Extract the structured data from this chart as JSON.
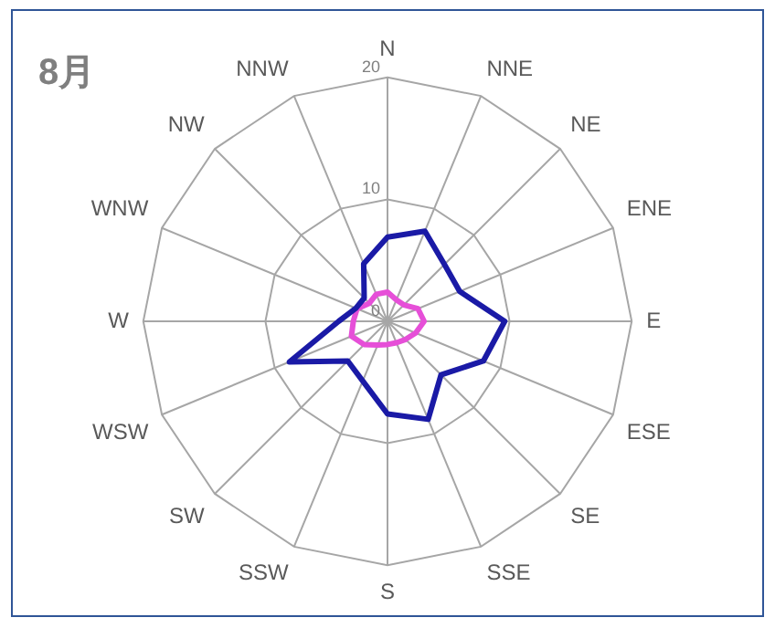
{
  "chart_data": {
    "type": "radar",
    "title": "8月",
    "categories": [
      "N",
      "NNE",
      "NE",
      "ENE",
      "E",
      "ESE",
      "SE",
      "SSE",
      "S",
      "SSW",
      "SW",
      "WSW",
      "W",
      "WNW",
      "NW",
      "NNW"
    ],
    "series": [
      {
        "color": "#1a1aa6",
        "values": [
          6.9,
          8.0,
          6.6,
          6.4,
          9.6,
          8.5,
          6.2,
          8.7,
          7.6,
          5.3,
          4.6,
          8.7,
          4.0,
          2.8,
          2.7,
          5.1
        ]
      },
      {
        "color": "#e64fd8",
        "values": [
          2.4,
          1.9,
          1.9,
          2.7,
          3.0,
          2.5,
          2.1,
          1.9,
          1.9,
          2.1,
          2.7,
          3.2,
          2.8,
          2.7,
          2.1,
          2.4
        ]
      }
    ],
    "ylim": [
      0,
      20
    ],
    "yticks": [
      0,
      10,
      20
    ],
    "grid": true,
    "marker": "none"
  }
}
